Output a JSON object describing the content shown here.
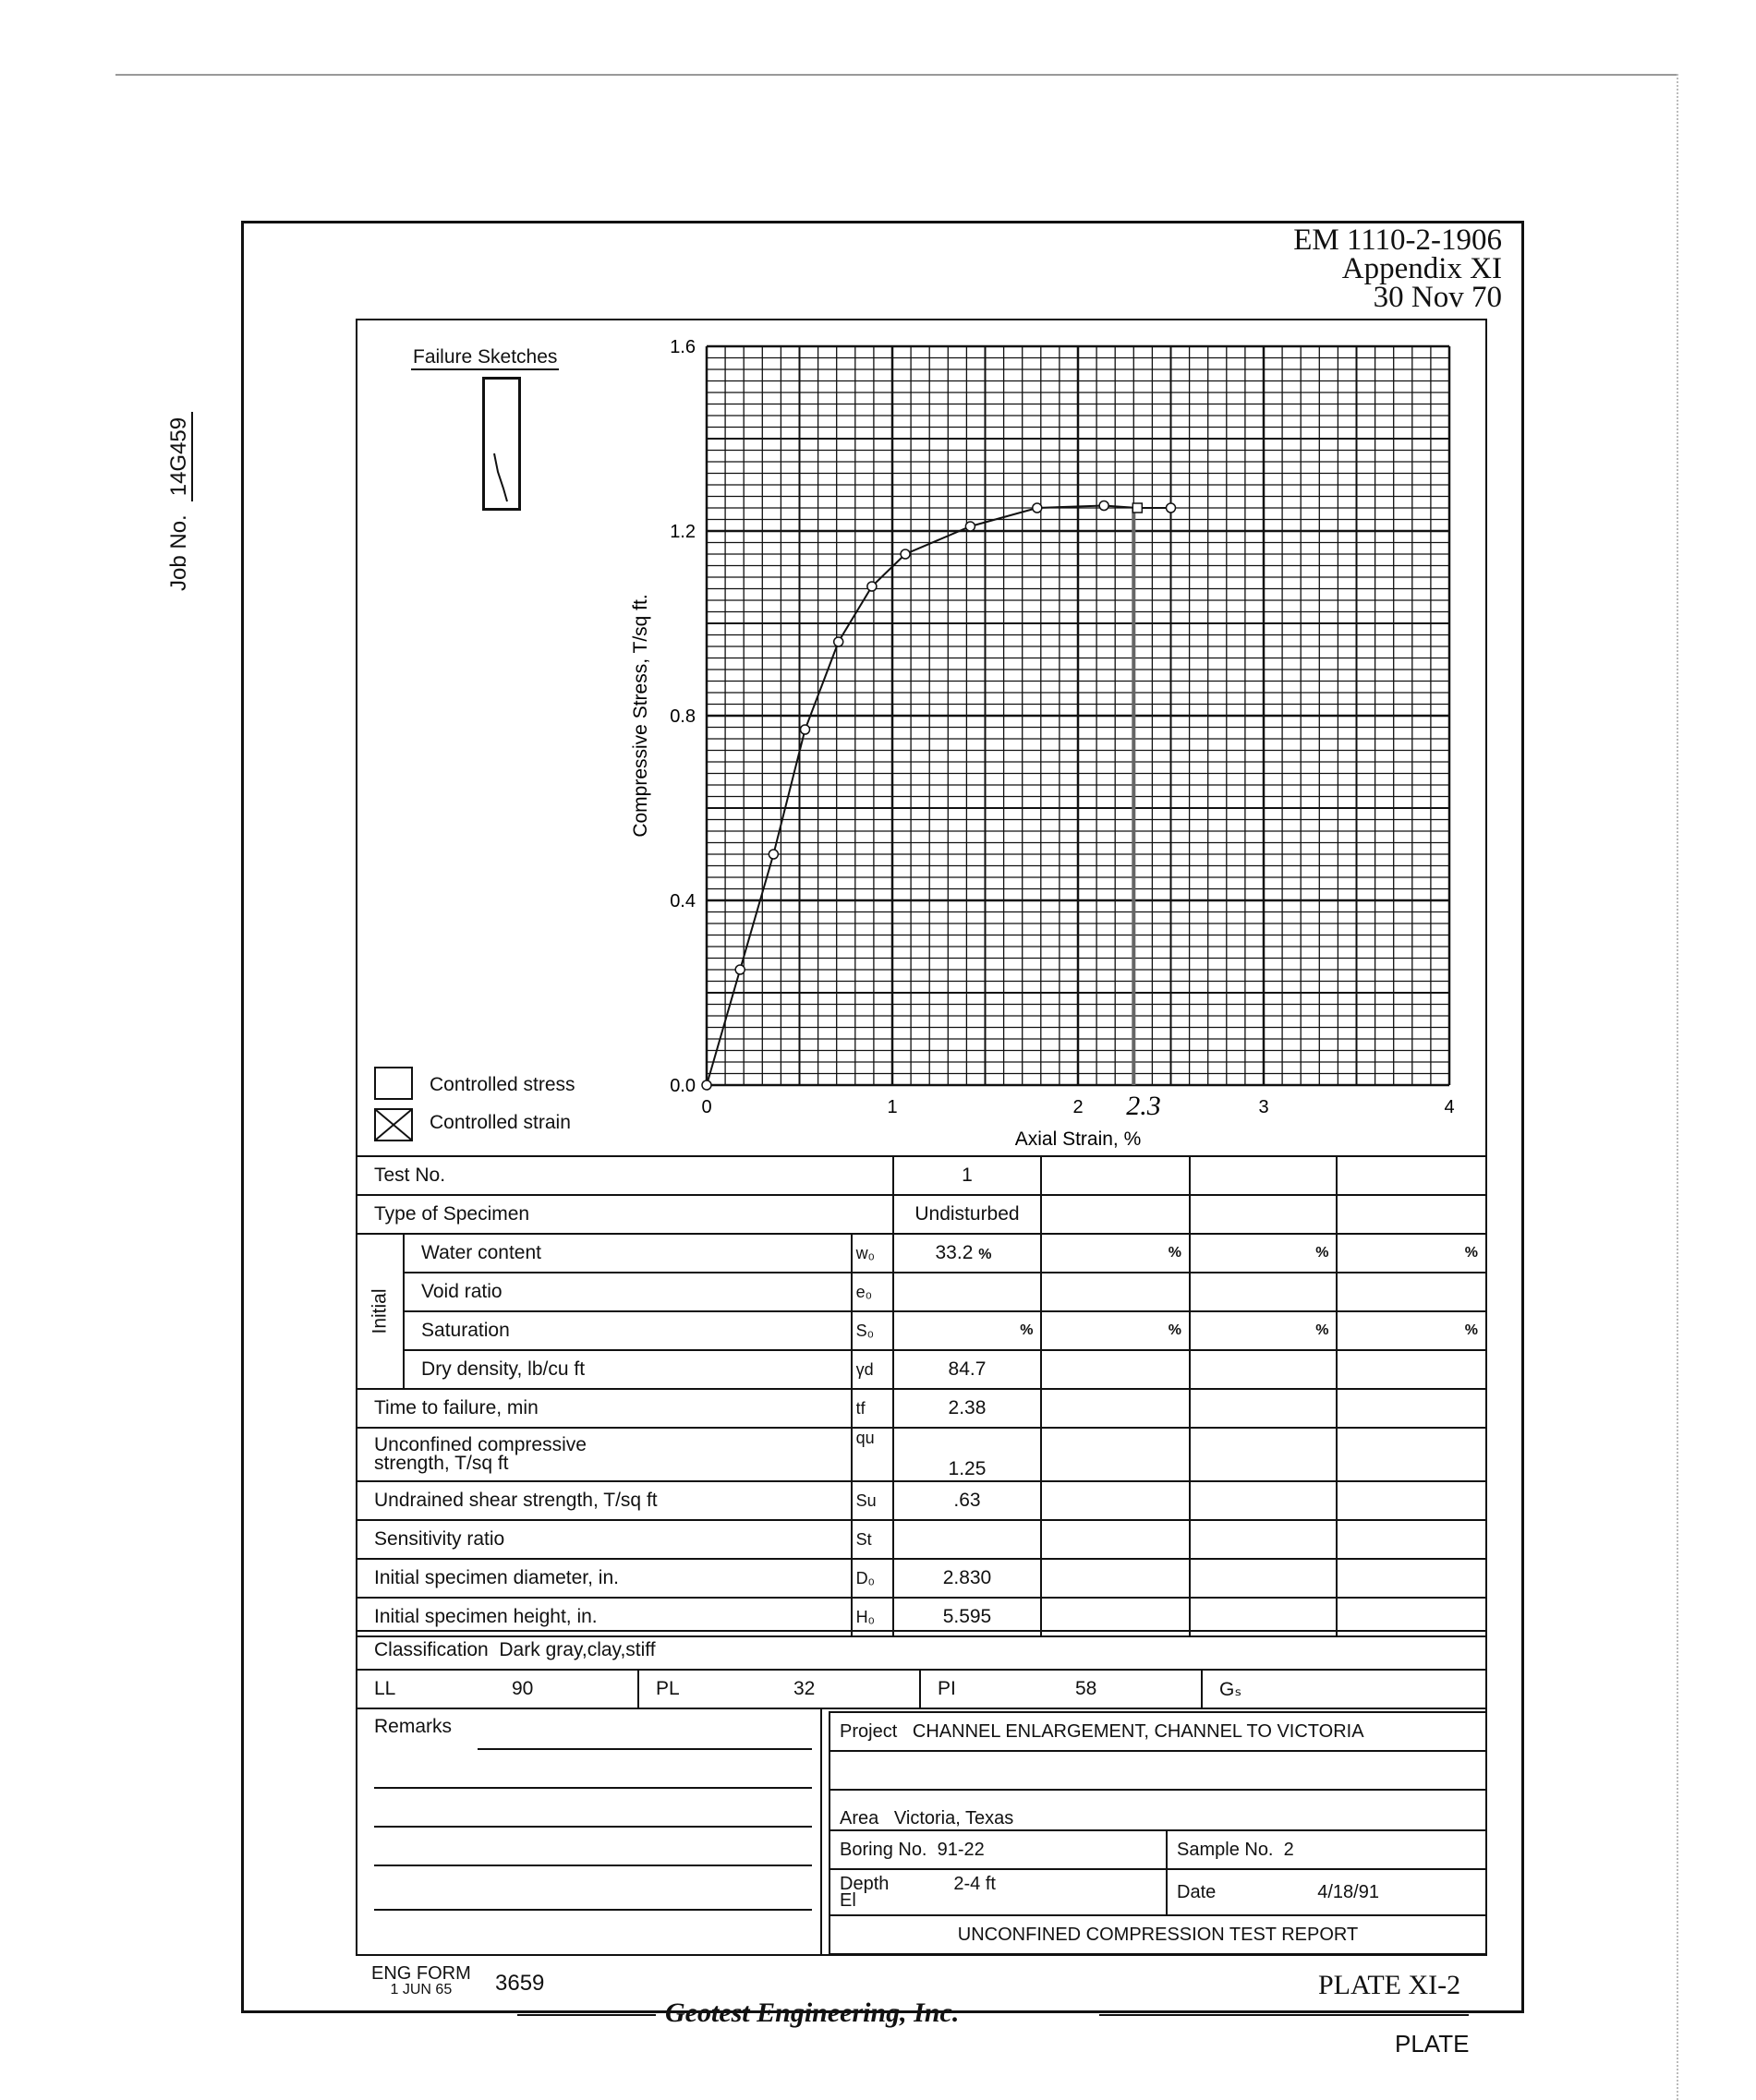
{
  "header": {
    "doc": "EM 1110-2-1906",
    "appendix": "Appendix XI",
    "date": "30 Nov 70"
  },
  "job": {
    "label": "Job No.",
    "value": "14G459"
  },
  "failure_sketches": "Failure Sketches",
  "legend": {
    "stress": "Controlled stress",
    "strain": "Controlled strain",
    "strain_checked": true
  },
  "chart_data": {
    "type": "line",
    "xlabel": "Axial Strain, %",
    "ylabel": "Compressive Stress, T/sq ft.",
    "xlim": [
      0,
      4
    ],
    "ylim": [
      0,
      1.6
    ],
    "xticks": [
      "0",
      "1",
      "2",
      "3",
      "4"
    ],
    "yticks": [
      "0.0",
      "0.4",
      "0.8",
      "1.2",
      "1.6"
    ],
    "grid": true,
    "x": [
      0,
      0.18,
      0.36,
      0.53,
      0.71,
      0.89,
      1.07,
      1.42,
      1.78,
      2.14,
      2.32,
      2.5
    ],
    "y": [
      0,
      0.25,
      0.5,
      0.77,
      0.96,
      1.08,
      1.15,
      1.21,
      1.25,
      1.255,
      1.25,
      1.25
    ],
    "failure_strain": 2.3,
    "annotation": "2.3"
  },
  "table": {
    "test_no": {
      "label": "Test No.",
      "values": [
        "1",
        "",
        "",
        ""
      ]
    },
    "type": {
      "label": "Type of Specimen",
      "values": [
        "Undisturbed",
        "",
        "",
        ""
      ]
    },
    "initial_label": "Initial",
    "water": {
      "label": "Water content",
      "sym": "w₀",
      "values": [
        "33.2",
        "",
        "",
        ""
      ],
      "unit": "%"
    },
    "void": {
      "label": "Void ratio",
      "sym": "e₀"
    },
    "sat": {
      "label": "Saturation",
      "sym": "S₀",
      "unit": "%"
    },
    "dry": {
      "label": "Dry density, lb/cu ft",
      "sym": "γd",
      "value": "84.7"
    },
    "time": {
      "label": "Time to failure, min",
      "sym": "tf",
      "value": "2.38"
    },
    "qu": {
      "label1": "Unconfined compressive",
      "label2": "strength, T/sq ft",
      "sym": "qu",
      "value": "1.25"
    },
    "su": {
      "label": "Undrained shear strength, T/sq ft",
      "sym": "Su",
      "value": ".63"
    },
    "st": {
      "label": "Sensitivity ratio",
      "sym": "St"
    },
    "d0": {
      "label": "Initial specimen diameter, in.",
      "sym": "D₀",
      "value": "2.830"
    },
    "h0": {
      "label": "Initial specimen height, in.",
      "sym": "H₀",
      "value": "5.595"
    }
  },
  "classification": {
    "label": "Classification",
    "value": "Dark gray,clay,stiff"
  },
  "limits": {
    "ll_label": "LL",
    "ll": "90",
    "pl_label": "PL",
    "pl": "32",
    "pi_label": "PI",
    "pi": "58",
    "gs_label": "Gₛ"
  },
  "remarks": "Remarks",
  "project": {
    "label": "Project",
    "value": "CHANNEL ENLARGEMENT, CHANNEL TO VICTORIA"
  },
  "area": {
    "label": "Area",
    "value": "Victoria, Texas"
  },
  "boring": {
    "label": "Boring No.",
    "value": "91-22"
  },
  "sample": {
    "label": "Sample No.",
    "value": "2"
  },
  "depth": {
    "label": "Depth",
    "el": "El",
    "value": "2-4 ft"
  },
  "date": {
    "label": "Date",
    "value": "4/18/91"
  },
  "report_title": "UNCONFINED COMPRESSION TEST REPORT",
  "footer": {
    "form": "ENG FORM",
    "form_date": "1 JUN 65",
    "form_no": "3659",
    "company": "Geotest Engineering, Inc.",
    "plate": "PLATE XI-2",
    "plate_bottom": "PLATE"
  }
}
